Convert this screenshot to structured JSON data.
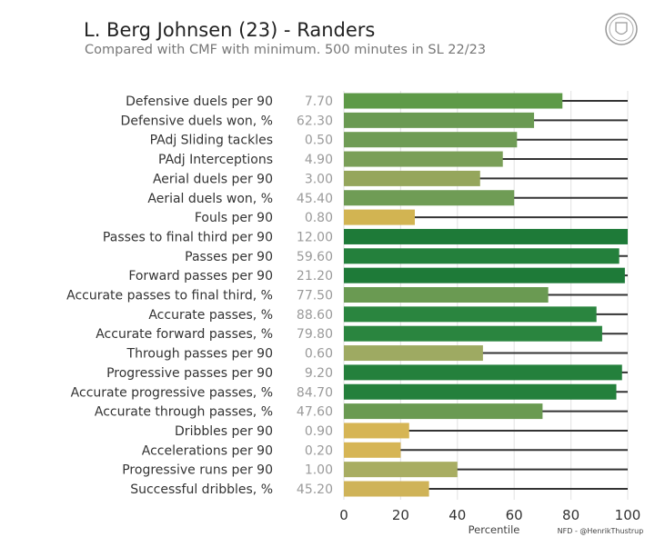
{
  "header": {
    "title": "L. Berg Johnsen (23) - Randers",
    "subtitle": "Compared with CMF with minimum. 500 minutes in SL 22/23",
    "logo": "club-crest-logo"
  },
  "chart_data": {
    "type": "bar",
    "orientation": "horizontal",
    "xlabel": "Percentile",
    "xlim": [
      0,
      100
    ],
    "xticks": [
      "0",
      "20",
      "40",
      "60",
      "80",
      "100"
    ],
    "grid": true,
    "credit": "NFD - @HenrikThustrup",
    "categories": [
      "Defensive duels per 90",
      "Defensive duels won, %",
      "PAdj Sliding tackles",
      "PAdj Interceptions",
      "Aerial duels per 90",
      "Aerial duels won, %",
      "Fouls per 90",
      "Passes to final third per 90",
      "Passes per 90",
      "Forward passes per 90",
      "Accurate passes to final third, %",
      "Accurate passes, %",
      "Accurate forward passes, %",
      "Through passes per 90",
      "Progressive passes per 90",
      "Accurate progressive passes, %",
      "Accurate through passes, %",
      "Dribbles per 90",
      "Accelerations per 90",
      "Progressive runs per 90",
      "Successful dribbles, %"
    ],
    "raw_values": [
      "7.70",
      "62.30",
      "0.50",
      "4.90",
      "3.00",
      "45.40",
      "0.80",
      "12.00",
      "59.60",
      "21.20",
      "77.50",
      "88.60",
      "79.80",
      "0.60",
      "9.20",
      "84.70",
      "47.60",
      "0.90",
      "0.20",
      "1.00",
      "45.20"
    ],
    "values": [
      77,
      67,
      61,
      56,
      48,
      60,
      25,
      100,
      97,
      99,
      72,
      89,
      91,
      49,
      98,
      96,
      70,
      23,
      20,
      40,
      30
    ],
    "colors": [
      "#5e9a48",
      "#6a9a52",
      "#6f9c55",
      "#7a9f58",
      "#95a65c",
      "#6f9c55",
      "#d2b452",
      "#1e7a38",
      "#24803c",
      "#1e7a38",
      "#6a9a52",
      "#2a853f",
      "#2a853f",
      "#9eaa62",
      "#24803c",
      "#24803c",
      "#6a9a52",
      "#d6b555",
      "#d6b555",
      "#a8ad62",
      "#cfb358"
    ],
    "background_line_color": "#333333"
  }
}
